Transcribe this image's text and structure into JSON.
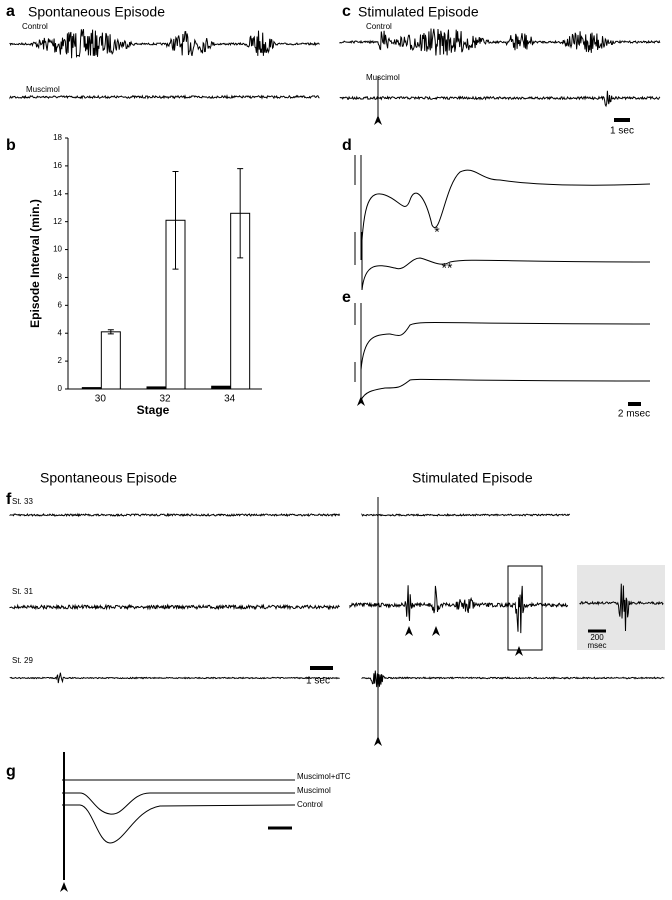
{
  "panels": {
    "a": {
      "label": "a",
      "title": "Spontaneous Episode",
      "traces": [
        "Control",
        "Muscimol"
      ]
    },
    "c": {
      "label": "c",
      "title": "Stimulated Episode",
      "traces": [
        "Control",
        "Muscimol"
      ],
      "scale": "1 sec"
    },
    "d": {
      "label": "d",
      "marks": [
        "*",
        "**"
      ]
    },
    "e": {
      "label": "e",
      "scale": "2 msec"
    },
    "f": {
      "label": "f",
      "left_title": "Spontaneous Episode",
      "right_title": "Stimulated Episode",
      "traces": [
        "St. 33",
        "St. 31",
        "St. 29"
      ],
      "scale": "1 sec",
      "inset_scale": {
        "value": "200",
        "unit": "msec"
      }
    },
    "g": {
      "label": "g",
      "traces": [
        "Muscimol+dTC",
        "Muscimol",
        "Control"
      ]
    }
  },
  "chart_data": {
    "type": "bar",
    "label": "b",
    "xlabel": "Stage",
    "ylabel": "Episode Interval (min.)",
    "categories": [
      "30",
      "32",
      "34"
    ],
    "series": [
      {
        "color": "#000000",
        "values": [
          0.1,
          0.15,
          0.2
        ]
      },
      {
        "color": "#ffffff",
        "values": [
          4.1,
          12.1,
          12.6
        ],
        "errors": [
          0.15,
          3.5,
          3.2
        ]
      }
    ],
    "ylim": [
      0,
      18
    ],
    "yticks": [
      0,
      2,
      4,
      6,
      8,
      10,
      12,
      14,
      16,
      18
    ]
  }
}
